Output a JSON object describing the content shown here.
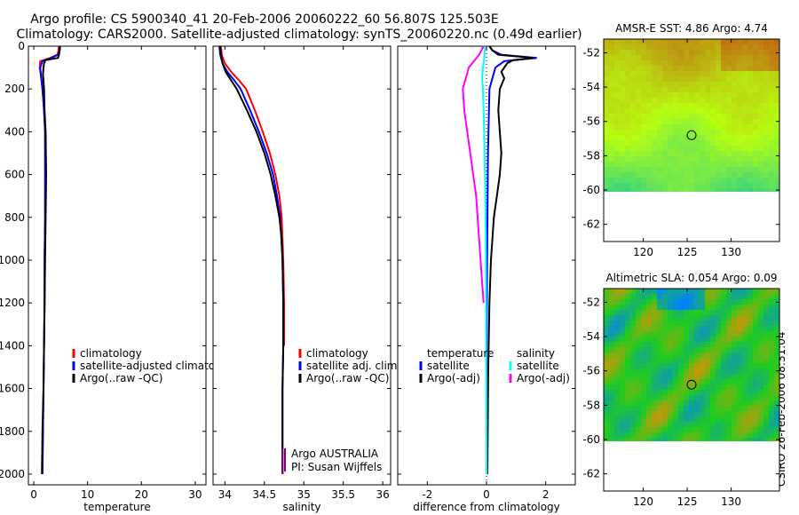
{
  "header": {
    "line1": "Argo profile: CS 5900340_41 20-Feb-2006 20060222_60 56.807S 125.503E",
    "line2": "Climatology: CARS2000. Satellite-adjusted climatology: synTS_20060220.nc (0.49d earlier)"
  },
  "footer_stamp": "CSIRO 26-Feb-2006 08:31:04",
  "colors": {
    "climatology": "#ff0000",
    "satellite": "#0000ff",
    "argo": "#000000",
    "sat_salinity": "#00ffff",
    "argo_salinity": "#ff00ff"
  },
  "chart_data": [
    {
      "id": "temperature",
      "type": "line",
      "xlabel": "temperature",
      "ylabel": "",
      "xlim": [
        -1,
        32
      ],
      "ylim": [
        0,
        2050
      ],
      "xticks": [
        0,
        10,
        20,
        30
      ],
      "yticks": [
        0,
        200,
        400,
        600,
        800,
        1000,
        1200,
        1400,
        1600,
        1800,
        2000
      ],
      "legend": [
        "climatology",
        "satellite-adjusted climatology",
        "Argo(..raw -QC)"
      ],
      "series": [
        {
          "name": "climatology",
          "color": "#ff0000",
          "points": [
            [
              4.7,
              0
            ],
            [
              4.6,
              20
            ],
            [
              4.4,
              40
            ],
            [
              3.0,
              55
            ],
            [
              1.2,
              70
            ],
            [
              1.1,
              100
            ],
            [
              1.4,
              150
            ],
            [
              1.6,
              200
            ],
            [
              1.9,
              300
            ],
            [
              2.1,
              400
            ],
            [
              2.1,
              600
            ],
            [
              2.1,
              800
            ],
            [
              2.0,
              1000
            ],
            [
              2.0,
              1200
            ],
            [
              1.9,
              1400
            ],
            [
              1.8,
              1600
            ],
            [
              1.7,
              1800
            ],
            [
              1.6,
              2000
            ]
          ]
        },
        {
          "name": "satellite-adjusted climatology",
          "color": "#0000ff",
          "points": [
            [
              4.9,
              0
            ],
            [
              4.8,
              20
            ],
            [
              4.5,
              40
            ],
            [
              3.3,
              55
            ],
            [
              1.6,
              70
            ],
            [
              1.2,
              100
            ],
            [
              1.4,
              150
            ],
            [
              1.6,
              200
            ],
            [
              1.9,
              300
            ],
            [
              2.1,
              400
            ],
            [
              2.1,
              600
            ],
            [
              2.1,
              800
            ],
            [
              2.0,
              1000
            ],
            [
              2.0,
              1200
            ],
            [
              1.9,
              1400
            ],
            [
              1.8,
              1600
            ],
            [
              1.7,
              1800
            ],
            [
              1.6,
              2000
            ]
          ]
        },
        {
          "name": "Argo(..raw -QC)",
          "color": "#000000",
          "points": [
            [
              4.8,
              0
            ],
            [
              4.8,
              20
            ],
            [
              4.7,
              40
            ],
            [
              4.5,
              55
            ],
            [
              2.2,
              65
            ],
            [
              1.9,
              80
            ],
            [
              1.8,
              100
            ],
            [
              1.7,
              130
            ],
            [
              1.8,
              160
            ],
            [
              1.9,
              200
            ],
            [
              2.0,
              300
            ],
            [
              2.2,
              400
            ],
            [
              2.3,
              600
            ],
            [
              2.2,
              800
            ],
            [
              2.1,
              1000
            ],
            [
              2.0,
              1200
            ],
            [
              1.9,
              1400
            ],
            [
              1.8,
              1600
            ],
            [
              1.6,
              1800
            ],
            [
              1.5,
              2000
            ]
          ]
        }
      ]
    },
    {
      "id": "salinity",
      "type": "line",
      "xlabel": "salinity",
      "ylabel": "",
      "xlim": [
        33.85,
        36.1
      ],
      "ylim": [
        0,
        2050
      ],
      "xticks": [
        34,
        34.5,
        35,
        35.5,
        36
      ],
      "yticks": [
        0,
        200,
        400,
        600,
        800,
        1000,
        1200,
        1400,
        1600,
        1800,
        2000
      ],
      "legend": [
        "climatology",
        "satellite adj. clim.",
        "Argo(..raw -QC)"
      ],
      "annotations": [
        "Argo AUSTRALIA",
        "PI: Susan Wijffels"
      ],
      "series": [
        {
          "name": "climatology",
          "color": "#ff0000",
          "points": [
            [
              33.95,
              0
            ],
            [
              33.96,
              40
            ],
            [
              34.0,
              80
            ],
            [
              34.08,
              120
            ],
            [
              34.18,
              160
            ],
            [
              34.27,
              200
            ],
            [
              34.38,
              300
            ],
            [
              34.48,
              400
            ],
            [
              34.57,
              500
            ],
            [
              34.64,
              600
            ],
            [
              34.69,
              700
            ],
            [
              34.72,
              800
            ],
            [
              34.74,
              1000
            ],
            [
              34.75,
              1200
            ],
            [
              34.75,
              1400
            ]
          ]
        },
        {
          "name": "satellite adj. clim.",
          "color": "#0000ff",
          "points": [
            [
              33.93,
              0
            ],
            [
              33.94,
              40
            ],
            [
              33.97,
              80
            ],
            [
              34.03,
              120
            ],
            [
              34.12,
              160
            ],
            [
              34.2,
              200
            ],
            [
              34.32,
              300
            ],
            [
              34.43,
              400
            ],
            [
              34.53,
              500
            ],
            [
              34.61,
              600
            ],
            [
              34.66,
              700
            ],
            [
              34.7,
              800
            ],
            [
              34.73,
              1000
            ],
            [
              34.74,
              1200
            ],
            [
              34.74,
              1400
            ],
            [
              34.73,
              1600
            ],
            [
              34.73,
              1800
            ],
            [
              34.73,
              2000
            ]
          ]
        },
        {
          "name": "Argo(..raw -QC)",
          "color": "#000000",
          "points": [
            [
              33.94,
              0
            ],
            [
              33.95,
              40
            ],
            [
              33.97,
              80
            ],
            [
              34.01,
              120
            ],
            [
              34.08,
              160
            ],
            [
              34.15,
              200
            ],
            [
              34.28,
              300
            ],
            [
              34.4,
              400
            ],
            [
              34.5,
              500
            ],
            [
              34.58,
              600
            ],
            [
              34.64,
              700
            ],
            [
              34.69,
              800
            ],
            [
              34.72,
              900
            ],
            [
              34.73,
              1000
            ],
            [
              34.74,
              1200
            ],
            [
              34.74,
              1400
            ],
            [
              34.73,
              1600
            ],
            [
              34.73,
              1800
            ],
            [
              34.73,
              2000
            ]
          ]
        },
        {
          "name": "Argo AUSTRALIA deep",
          "color": "#7f007f",
          "points": [
            [
              34.73,
              1880
            ],
            [
              34.73,
              2000
            ]
          ]
        }
      ]
    },
    {
      "id": "difference",
      "type": "line",
      "xlabel": "difference from climatology",
      "ylabel": "",
      "xlim": [
        -3.0,
        3.0
      ],
      "ylim": [
        0,
        2050
      ],
      "xticks": [
        -2,
        0,
        2
      ],
      "yticks": [
        0,
        200,
        400,
        600,
        800,
        1000,
        1200,
        1400,
        1600,
        1800,
        2000
      ],
      "legend_temperature": [
        "temperature",
        "satellite",
        "Argo(-adj)"
      ],
      "legend_salinity": [
        "salinity",
        "satellite",
        "Argo(-adj)"
      ],
      "series": [
        {
          "name": "temperature satellite",
          "color": "#0000ff",
          "points": [
            [
              0.1,
              0
            ],
            [
              0.2,
              20
            ],
            [
              0.5,
              40
            ],
            [
              1.7,
              55
            ],
            [
              0.6,
              70
            ],
            [
              0.3,
              100
            ],
            [
              0.1,
              200
            ],
            [
              0.05,
              500
            ],
            [
              0.02,
              1000
            ],
            [
              0.0,
              1500
            ],
            [
              0.0,
              2000
            ]
          ]
        },
        {
          "name": "temperature Argo(-adj)",
          "color": "#000000",
          "points": [
            [
              0.1,
              0
            ],
            [
              0.2,
              20
            ],
            [
              0.4,
              40
            ],
            [
              1.6,
              55
            ],
            [
              0.9,
              65
            ],
            [
              0.7,
              80
            ],
            [
              0.5,
              120
            ],
            [
              0.6,
              150
            ],
            [
              0.45,
              200
            ],
            [
              0.4,
              300
            ],
            [
              0.45,
              400
            ],
            [
              0.5,
              500
            ],
            [
              0.45,
              600
            ],
            [
              0.35,
              700
            ],
            [
              0.25,
              800
            ],
            [
              0.15,
              1000
            ],
            [
              0.1,
              1200
            ],
            [
              0.06,
              1500
            ],
            [
              0.03,
              2000
            ]
          ]
        },
        {
          "name": "salinity satellite",
          "color": "#00ffff",
          "points": [
            [
              -0.05,
              0
            ],
            [
              -0.07,
              50
            ],
            [
              -0.12,
              100
            ],
            [
              -0.15,
              150
            ],
            [
              -0.12,
              200
            ],
            [
              -0.08,
              400
            ],
            [
              -0.05,
              600
            ],
            [
              -0.03,
              800
            ],
            [
              -0.02,
              1000
            ],
            [
              -0.01,
              1500
            ],
            [
              0.0,
              2000
            ]
          ]
        },
        {
          "name": "salinity Argo(-adj)",
          "color": "#ff00ff",
          "points": [
            [
              -0.1,
              0
            ],
            [
              -0.25,
              40
            ],
            [
              -0.6,
              100
            ],
            [
              -0.7,
              150
            ],
            [
              -0.8,
              200
            ],
            [
              -0.75,
              300
            ],
            [
              -0.65,
              400
            ],
            [
              -0.55,
              500
            ],
            [
              -0.45,
              600
            ],
            [
              -0.35,
              700
            ],
            [
              -0.3,
              800
            ],
            [
              -0.2,
              1000
            ],
            [
              -0.1,
              1200
            ]
          ]
        }
      ]
    },
    {
      "id": "amsre_sst",
      "type": "heatmap",
      "title": "AMSR-E SST: 4.86 Argo: 4.74",
      "xlim": [
        115.5,
        135.5
      ],
      "ylim": [
        -63,
        -51.2
      ],
      "data_top_lat": -60.1,
      "xticks": [
        120,
        125,
        130
      ],
      "yticks": [
        -52,
        -54,
        -56,
        -58,
        -60,
        -62
      ],
      "marker": {
        "lon": 125.5,
        "lat": -56.8
      },
      "colors": {
        "low": "#00c0b0",
        "mid": "#b8ff10",
        "high": "#c06010"
      }
    },
    {
      "id": "altimetric_sla",
      "type": "heatmap",
      "title": "Altimetric SLA: 0.054 Argo: 0.09",
      "xlim": [
        115.5,
        135.5
      ],
      "ylim": [
        -63,
        -51.2
      ],
      "data_top_lat": -60.1,
      "xticks": [
        120,
        125,
        130
      ],
      "yticks": [
        -52,
        -54,
        -56,
        -58,
        -60,
        -62
      ],
      "marker": {
        "lon": 125.5,
        "lat": -56.8
      },
      "colors": {
        "low": "#0080ff",
        "mid": "#20cc20",
        "high": "#ff8800"
      }
    }
  ]
}
